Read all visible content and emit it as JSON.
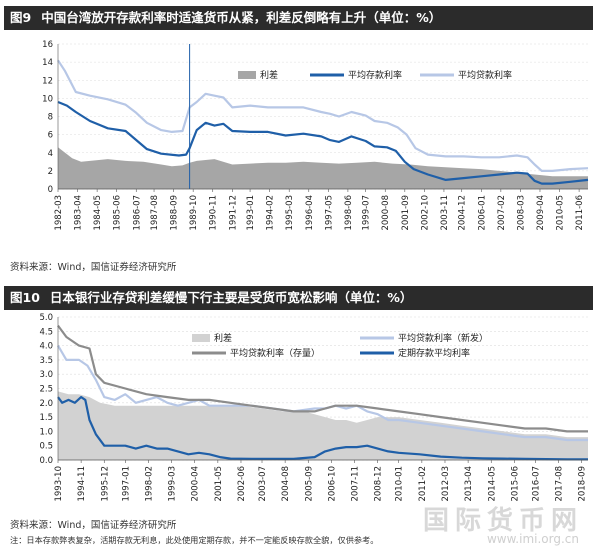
{
  "fig1": {
    "label": "图9",
    "title": "中国台湾放开存款利率时适逢货币从紧，利差反倒略有上升（单位：%）",
    "source": "资料来源：Wind，国信证券经济研究所"
  },
  "fig2": {
    "label": "图10",
    "title": "日本银行业存贷利差缓慢下行主要是受货币宽松影响（单位：%）",
    "source": "资料来源：Wind，国信证券经济研究所",
    "note": "注：日本存款弊表复杂，活期存款无利息，此处使用定期存款，并不一定能反映存款全貌，仅供参考。"
  },
  "watermark": {
    "text": "国际货币网",
    "url": "www.imi.org.cn"
  },
  "colors": {
    "spread": "#a6a6a6",
    "deposit": "#1f5fa8",
    "lending": "#b7c7e6",
    "lending_stock": "#8c8c8c",
    "spread_light": "#d2d2d2"
  },
  "chart_data": [
    {
      "type": "area",
      "title": "中国台湾放开存款利率时适逢货币从紧，利差反倒略有上升（单位：%）",
      "ylim": [
        0,
        16
      ],
      "yticks": [
        0,
        2,
        4,
        6,
        8,
        10,
        12,
        14,
        16
      ],
      "xlim": [
        1982.2,
        2012.0
      ],
      "x_tick_labels": [
        "1982-03",
        "1983-04",
        "1984-05",
        "1985-06",
        "1986-07",
        "1987-08",
        "1988-09",
        "1989-10",
        "1990-11",
        "1991-12",
        "1993-01",
        "1994-02",
        "1995-03",
        "1996-04",
        "1997-05",
        "1998-06",
        "1999-07",
        "2000-08",
        "2001-09",
        "2002-10",
        "2003-11",
        "2004-12",
        "2006-01",
        "2007-02",
        "2008-03",
        "2009-04",
        "2010-05",
        "2011-06"
      ],
      "x_tick_values": [
        1982.2,
        1983.3,
        1984.4,
        1985.5,
        1986.6,
        1987.6,
        1988.7,
        1989.8,
        1990.9,
        1992.0,
        1993.0,
        1994.1,
        1995.2,
        1996.3,
        1997.4,
        1998.5,
        1999.5,
        2000.6,
        2001.7,
        2002.8,
        2003.9,
        2004.9,
        2006.0,
        2007.1,
        2008.2,
        2009.3,
        2010.4,
        2011.5
      ],
      "vline_x": 1989.6,
      "legend": [
        "利差",
        "平均存款利率",
        "平均贷款利率"
      ],
      "series": [
        {
          "name": "利差",
          "kind": "area",
          "x": [
            1982.2,
            1982.6,
            1983.0,
            1983.5,
            1984.0,
            1985.0,
            1986.0,
            1987.0,
            1988.0,
            1988.6,
            1989.2,
            1989.6,
            1990.0,
            1990.5,
            1991.0,
            1992.0,
            1993.0,
            1994.0,
            1995.0,
            1996.0,
            1997.0,
            1998.0,
            1999.0,
            2000.0,
            2001.0,
            2002.0,
            2003.0,
            2004.0,
            2005.0,
            2006.0,
            2007.0,
            2008.0,
            2008.5,
            2009.0,
            2009.5,
            2010.0,
            2011.0,
            2012.0
          ],
          "values": [
            4.6,
            4.0,
            3.4,
            3.0,
            3.1,
            3.3,
            3.1,
            3.0,
            2.7,
            2.5,
            2.6,
            2.9,
            3.1,
            3.2,
            3.3,
            2.7,
            2.8,
            2.9,
            2.9,
            3.0,
            2.9,
            2.8,
            2.9,
            3.0,
            2.8,
            2.7,
            2.5,
            2.4,
            2.3,
            2.2,
            2.0,
            1.8,
            1.7,
            1.6,
            1.5,
            1.4,
            1.4,
            1.4
          ]
        },
        {
          "name": "平均存款利率",
          "kind": "line",
          "x": [
            1982.2,
            1982.7,
            1983.2,
            1984.0,
            1985.0,
            1986.0,
            1986.6,
            1987.2,
            1988.0,
            1989.0,
            1989.4,
            1989.6,
            1990.0,
            1990.5,
            1991.0,
            1991.5,
            1992.0,
            1993.0,
            1994.0,
            1995.0,
            1996.0,
            1997.0,
            1997.5,
            1998.0,
            1998.7,
            1999.5,
            2000.0,
            2000.7,
            2001.2,
            2001.7,
            2002.2,
            2003.0,
            2004.0,
            2005.0,
            2006.0,
            2007.0,
            2008.0,
            2008.6,
            2009.0,
            2009.4,
            2010.0,
            2011.0,
            2012.0
          ],
          "values": [
            9.6,
            9.2,
            8.5,
            7.5,
            6.7,
            6.4,
            5.4,
            4.4,
            3.9,
            3.7,
            3.8,
            4.5,
            6.5,
            7.3,
            7.0,
            7.2,
            6.4,
            6.3,
            6.3,
            5.9,
            6.1,
            5.8,
            5.4,
            5.2,
            5.8,
            5.3,
            4.7,
            4.6,
            4.2,
            3.0,
            2.2,
            1.6,
            1.0,
            1.2,
            1.4,
            1.6,
            1.8,
            1.7,
            0.9,
            0.6,
            0.6,
            0.8,
            1.0
          ]
        },
        {
          "name": "平均贷款利率",
          "kind": "line",
          "x": [
            1982.2,
            1982.6,
            1983.2,
            1984.0,
            1985.0,
            1986.0,
            1986.6,
            1987.2,
            1988.0,
            1988.6,
            1989.2,
            1989.6,
            1990.0,
            1990.5,
            1991.0,
            1991.5,
            1992.0,
            1993.0,
            1994.0,
            1995.0,
            1996.0,
            1997.0,
            1997.5,
            1998.0,
            1998.7,
            1999.5,
            2000.0,
            2000.7,
            2001.3,
            2001.8,
            2002.3,
            2003.0,
            2004.0,
            2005.0,
            2006.0,
            2007.0,
            2008.0,
            2008.6,
            2009.0,
            2009.4,
            2010.0,
            2011.0,
            2012.0
          ],
          "values": [
            14.2,
            13.0,
            10.7,
            10.3,
            9.9,
            9.3,
            8.4,
            7.3,
            6.5,
            6.3,
            6.4,
            9.0,
            9.6,
            10.5,
            10.3,
            10.1,
            9.0,
            9.2,
            9.0,
            9.0,
            9.0,
            8.5,
            8.3,
            8.0,
            8.5,
            8.1,
            7.5,
            7.3,
            6.8,
            6.0,
            4.5,
            3.8,
            3.6,
            3.6,
            3.5,
            3.5,
            3.7,
            3.5,
            2.7,
            2.0,
            2.0,
            2.2,
            2.3
          ]
        }
      ]
    },
    {
      "type": "area",
      "title": "日本银行业存贷利差缓慢下行主要是受货币宽松影响（单位：%）",
      "ylim": [
        0,
        5
      ],
      "yticks": [
        0.0,
        0.5,
        1.0,
        1.5,
        2.0,
        2.5,
        3.0,
        3.5,
        4.0,
        4.5,
        5.0
      ],
      "ytick_labels": [
        "0.0",
        "0.5",
        "1.0",
        "1.5",
        "2.0",
        "2.5",
        "3.0",
        "3.5",
        "4.0",
        "4.5",
        "5.0"
      ],
      "xlim": [
        1993.8,
        2019.0
      ],
      "x_tick_labels": [
        "1993-10",
        "1994-11",
        "1995-12",
        "1997-01",
        "1998-02",
        "1999-03",
        "2000-04",
        "2001-05",
        "2002-06",
        "2003-07",
        "2004-08",
        "2005-09",
        "2006-10",
        "2007-11",
        "2008-12",
        "2010-01",
        "2011-02",
        "2012-03",
        "2013-04",
        "2014-05",
        "2015-06",
        "2016-07",
        "2017-08",
        "2018-09"
      ],
      "x_tick_values": [
        1993.8,
        1994.9,
        1996.0,
        1997.0,
        1998.1,
        1999.2,
        2000.3,
        2001.4,
        2002.5,
        2003.5,
        2004.6,
        2005.7,
        2006.8,
        2007.9,
        2009.0,
        2010.0,
        2011.1,
        2012.2,
        2013.3,
        2014.4,
        2015.5,
        2016.5,
        2017.6,
        2018.7
      ],
      "legend": [
        "利差",
        "平均贷款利率（新发）",
        "平均贷款利率（存量）",
        "定期存款平均利率"
      ],
      "series": [
        {
          "name": "利差",
          "kind": "area",
          "x": [
            1993.8,
            1994.3,
            1994.8,
            1995.3,
            1995.8,
            1996.5,
            1997.5,
            1998.5,
            1999.5,
            2000.5,
            2001.5,
            2002.5,
            2003.5,
            2004.5,
            2005.5,
            2006.5,
            2007.0,
            2007.5,
            2008.0,
            2008.5,
            2009.0,
            2010.0,
            2011.0,
            2012.0,
            2013.0,
            2014.0,
            2015.0,
            2016.0,
            2017.0,
            2018.0,
            2019.0
          ],
          "values": [
            2.4,
            2.3,
            2.3,
            2.2,
            2.0,
            1.9,
            1.9,
            1.9,
            1.9,
            1.9,
            1.9,
            1.9,
            1.8,
            1.7,
            1.7,
            1.5,
            1.4,
            1.4,
            1.3,
            1.4,
            1.5,
            1.5,
            1.4,
            1.3,
            1.2,
            1.1,
            1.0,
            0.9,
            0.9,
            0.8,
            0.8
          ]
        },
        {
          "name": "平均贷款利率（新发）",
          "kind": "line",
          "x": [
            1993.8,
            1994.2,
            1994.8,
            1995.2,
            1995.6,
            1996.0,
            1996.5,
            1997.0,
            1997.5,
            1998.0,
            1998.5,
            1999.0,
            1999.5,
            2000.0,
            2000.5,
            2001.0,
            2002.0,
            2003.0,
            2004.0,
            2005.0,
            2006.0,
            2006.5,
            2007.0,
            2007.5,
            2008.0,
            2008.5,
            2009.0,
            2009.5,
            2010.0,
            2011.0,
            2012.0,
            2013.0,
            2014.0,
            2015.0,
            2016.0,
            2017.0,
            2018.0,
            2019.0
          ],
          "values": [
            4.0,
            3.5,
            3.5,
            3.3,
            2.8,
            2.2,
            2.1,
            2.3,
            2.0,
            2.1,
            2.2,
            2.0,
            1.9,
            2.0,
            2.1,
            1.9,
            1.9,
            1.9,
            1.8,
            1.7,
            1.8,
            1.8,
            1.9,
            1.8,
            1.9,
            1.7,
            1.6,
            1.4,
            1.4,
            1.3,
            1.2,
            1.1,
            1.0,
            0.9,
            0.8,
            0.8,
            0.7,
            0.7
          ]
        },
        {
          "name": "平均贷款利率（存量）",
          "kind": "line",
          "x": [
            1993.8,
            1994.2,
            1994.8,
            1995.3,
            1995.6,
            1996.0,
            1997.0,
            1998.0,
            1999.0,
            2000.0,
            2001.0,
            2002.0,
            2003.0,
            2004.0,
            2005.0,
            2006.0,
            2006.5,
            2007.0,
            2007.5,
            2008.0,
            2009.0,
            2010.0,
            2011.0,
            2012.0,
            2013.0,
            2014.0,
            2015.0,
            2016.0,
            2017.0,
            2018.0,
            2019.0
          ],
          "values": [
            4.7,
            4.3,
            4.0,
            3.9,
            3.0,
            2.7,
            2.5,
            2.3,
            2.2,
            2.1,
            2.1,
            2.0,
            1.9,
            1.8,
            1.7,
            1.7,
            1.8,
            1.9,
            1.9,
            1.9,
            1.8,
            1.7,
            1.6,
            1.5,
            1.4,
            1.3,
            1.2,
            1.1,
            1.1,
            1.0,
            1.0
          ]
        },
        {
          "name": "定期存款平均利率",
          "kind": "line",
          "x": [
            1993.8,
            1994.0,
            1994.3,
            1994.6,
            1994.9,
            1995.1,
            1995.3,
            1995.6,
            1996.0,
            1996.5,
            1997.0,
            1997.5,
            1998.0,
            1998.5,
            1999.0,
            1999.5,
            2000.0,
            2000.5,
            2001.0,
            2001.5,
            2002.0,
            2003.0,
            2004.0,
            2005.0,
            2006.0,
            2006.5,
            2007.0,
            2007.5,
            2008.0,
            2008.5,
            2009.0,
            2009.5,
            2010.0,
            2011.0,
            2012.0,
            2013.0,
            2014.0,
            2015.0,
            2016.0,
            2017.0,
            2018.0,
            2019.0
          ],
          "values": [
            2.2,
            2.0,
            2.1,
            2.0,
            2.2,
            2.1,
            1.4,
            0.9,
            0.5,
            0.5,
            0.5,
            0.4,
            0.5,
            0.4,
            0.4,
            0.3,
            0.2,
            0.25,
            0.2,
            0.1,
            0.05,
            0.04,
            0.04,
            0.04,
            0.1,
            0.3,
            0.4,
            0.45,
            0.45,
            0.5,
            0.4,
            0.3,
            0.25,
            0.2,
            0.12,
            0.08,
            0.06,
            0.05,
            0.04,
            0.03,
            0.02,
            0.02
          ]
        }
      ]
    }
  ]
}
